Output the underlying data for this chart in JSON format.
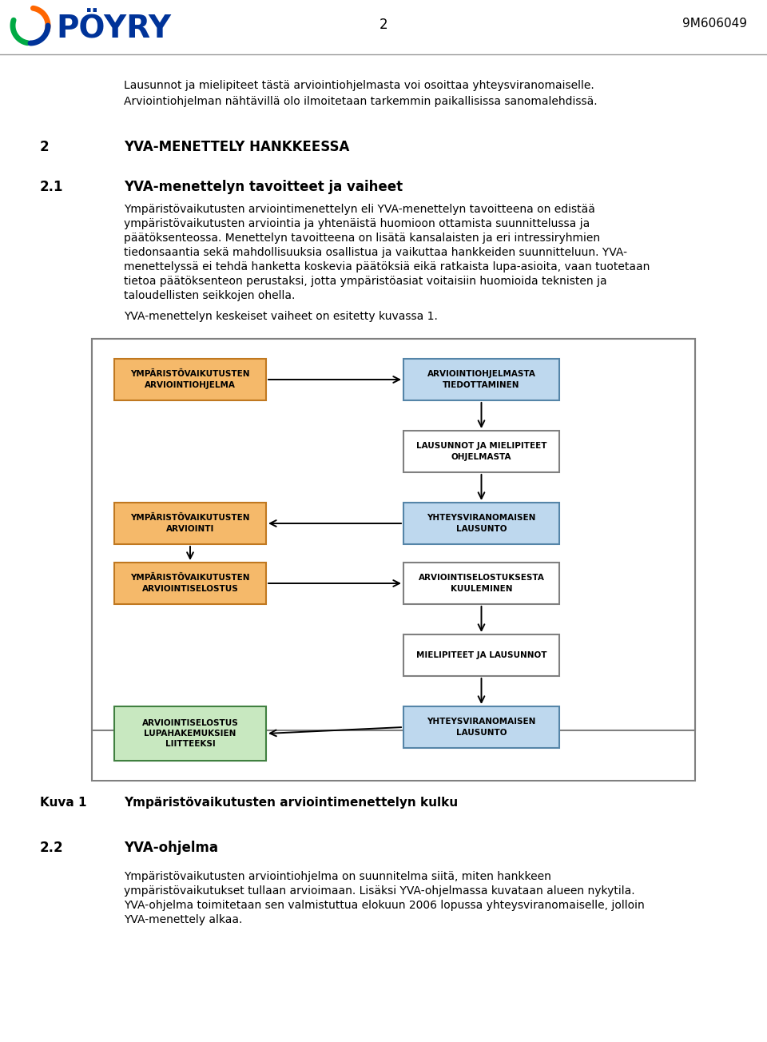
{
  "page_num": "2",
  "doc_num": "9M606049",
  "header_text1": "Lausunnot ja mielipiteet tästä arviointiohjelmasta voi osoittaa yhteysviranomaiselle.",
  "header_text2": "Arviointiohjelman nähtävillä olo ilmoitetaan tarkemmin paikallisissa sanomalehdissä.",
  "sec2_num": "2",
  "sec2_title": "YVA-MENETTELY HANKKEESSA",
  "sec21_num": "2.1",
  "sec21_title": "YVA-menettelyn tavoitteet ja vaiheet",
  "body_lines": [
    "Ympäristövaikutusten arviointimenettelyn eli YVA-menettelyn tavoitteena on edistää",
    "ympäristövaikutusten arviointia ja yhtenäistä huomioon ottamista suunnittelussa ja",
    "päätöksenteossa. Menettelyn tavoitteena on lisätä kansalaisten ja eri intressiryhmien",
    "tiedonsaantia sekä mahdollisuuksia osallistua ja vaikuttaa hankkeiden suunnitteluun. YVA-",
    "menettelyssä ei tehdä hanketta koskevia päätöksiä eikä ratkaista lupa-asioita, vaan tuotetaan",
    "tietoa päätöksenteon perustaksi, jotta ympäristöasiat voitaisiin huomioida teknisten ja",
    "taloudellisten seikkojen ohella."
  ],
  "intro_line": "YVA-menettelyn keskeiset vaiheet on esitetty kuvassa 1.",
  "caption_num": "Kuva 1",
  "caption_text": "Ympäristövaikutusten arviointimenettelyn kulku",
  "sec22_num": "2.2",
  "sec22_title": "YVA-ohjelma",
  "body22_lines": [
    "Ympäristövaikutusten arviointiohjelma on suunnitelma siitä, miten hankkeen",
    "ympäristövaikutukset tullaan arvioimaan. Lisäksi YVA-ohjelmassa kuvataan alueen nykytila.",
    "YVA-ohjelma toimitetaan sen valmistuttua elokuun 2006 lopussa yhteysviranomaiselle, jolloin",
    "YVA-menettely alkaa."
  ],
  "boxes": {
    "arviointiohjelma": {
      "label": "YMPÄRISTÖVAIKUTUSTEN\nARVIOINTIOHJELMA",
      "col": "#F5B96A",
      "ecol": "#C07820"
    },
    "tiedottaminen": {
      "label": "ARVIOINTIOHJELMASTA\nTIEDOTTAMINEN",
      "col": "#BED8EE",
      "ecol": "#5585A8"
    },
    "lausunnot": {
      "label": "LAUSUNNOT JA MIELIPITEET\nOHJELMASTA",
      "col": "#FFFFFF",
      "ecol": "#808080"
    },
    "yhteysviranomainen1": {
      "label": "YHTEYSVIRANOMAISEN\nLAUSUNTO",
      "col": "#BED8EE",
      "ecol": "#5585A8"
    },
    "arviointi": {
      "label": "YMPÄRISTÖVAIKUTUSTEN\nARVIOINTI",
      "col": "#F5B96A",
      "ecol": "#C07820"
    },
    "arviointiselostus": {
      "label": "YMPÄRISTÖVAIKUTUSTEN\nARVIOINTISELOSTUS",
      "col": "#F5B96A",
      "ecol": "#C07820"
    },
    "kuuleminen": {
      "label": "ARVIOINTISELOSTUKSESTA\nKUULEMINEN",
      "col": "#FFFFFF",
      "ecol": "#808080"
    },
    "mielipiteet": {
      "label": "MIELIPITEET JA LAUSUNNOT",
      "col": "#FFFFFF",
      "ecol": "#808080"
    },
    "yhteysviranomainen2": {
      "label": "YHTEYSVIRANOMAISEN\nLAUSUNTO",
      "col": "#BED8EE",
      "ecol": "#5585A8"
    },
    "lupahakemus": {
      "label": "ARVIOINTISELOSTUS\nLUPAHAKEMUKSIEN\nLIITTEEKSI",
      "col": "#C8E8C0",
      "ecol": "#408040"
    }
  }
}
